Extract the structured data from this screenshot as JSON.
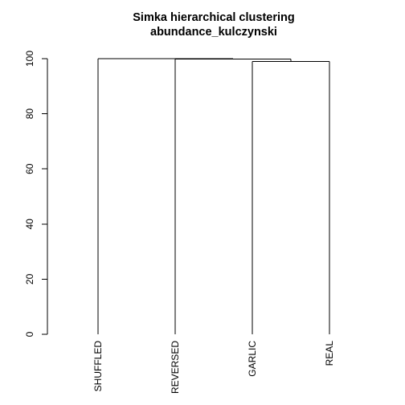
{
  "chart_data": {
    "type": "dendrogram",
    "title": [
      "Simka hierarchical clustering",
      "abundance_kulczynski"
    ],
    "ylim": [
      0,
      100
    ],
    "y_ticks": [
      0,
      20,
      40,
      60,
      80,
      100
    ],
    "leaves": [
      "SHUFFLED",
      "REVERSED",
      "GARLIC",
      "REAL"
    ],
    "merges": [
      {
        "left": "GARLIC",
        "right": "REAL",
        "height": 99
      },
      {
        "left": "REVERSED",
        "right": "GARLIC+REAL",
        "height": 99.8
      },
      {
        "left": "SHUFFLED",
        "right": "REVERSED+GARLIC+REAL",
        "height": 100
      }
    ]
  }
}
